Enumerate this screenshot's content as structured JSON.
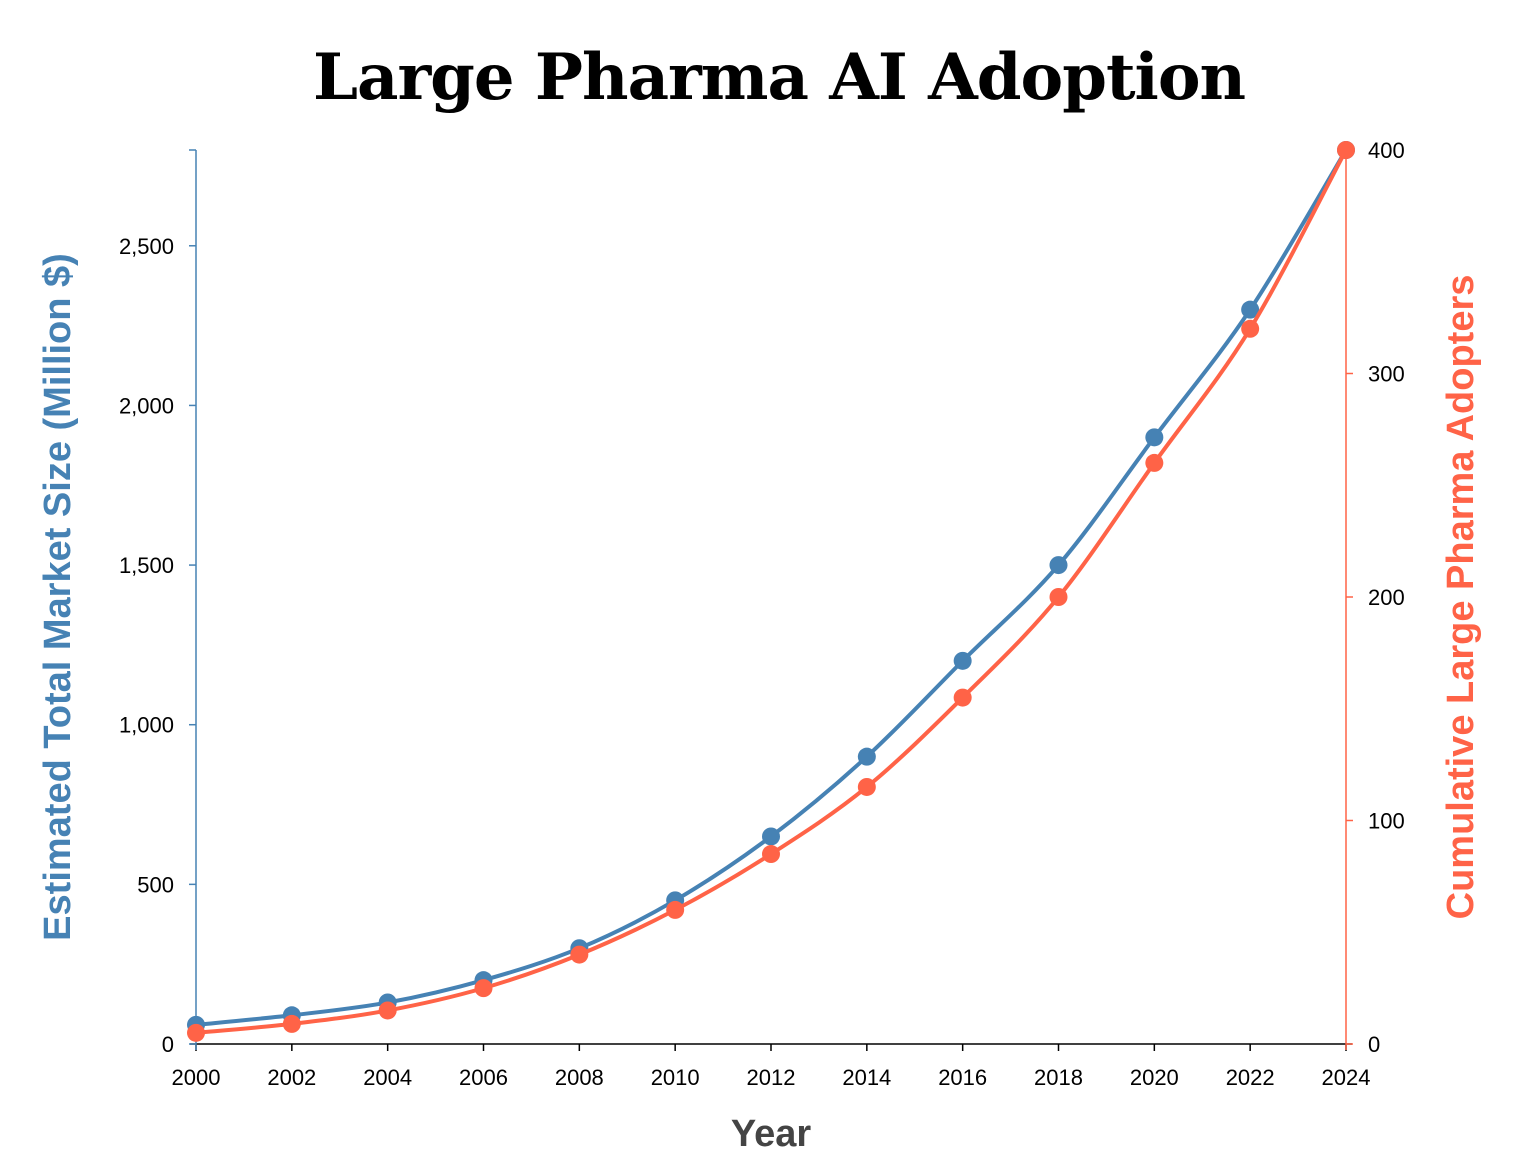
{
  "chart_data": {
    "type": "line",
    "title": "Large Pharma AI Adoption",
    "xlabel": "Year",
    "ylabel": "Estimated Total Market Size (Million $)",
    "y2label": "Cumulative Large Pharma Adopters",
    "x": [
      2000,
      2002,
      2004,
      2006,
      2008,
      2010,
      2012,
      2014,
      2016,
      2018,
      2020,
      2022,
      2024
    ],
    "xlim": [
      2000,
      2024
    ],
    "ylim": [
      0,
      2800
    ],
    "y2lim": [
      0,
      400
    ],
    "x_ticks": [
      "2000",
      "2002",
      "2004",
      "2006",
      "2008",
      "2010",
      "2012",
      "2014",
      "2016",
      "2018",
      "2020",
      "2022",
      "2024"
    ],
    "y_ticks": [
      {
        "value": 0,
        "label": "0"
      },
      {
        "value": 500,
        "label": "500"
      },
      {
        "value": 1000,
        "label": "1,000"
      },
      {
        "value": 1500,
        "label": "1,500"
      },
      {
        "value": 2000,
        "label": "2,000"
      },
      {
        "value": 2500,
        "label": "2,500"
      }
    ],
    "y2_ticks": [
      {
        "value": 0,
        "label": "0"
      },
      {
        "value": 100,
        "label": "100"
      },
      {
        "value": 200,
        "label": "200"
      },
      {
        "value": 300,
        "label": "300"
      },
      {
        "value": 400,
        "label": "400"
      }
    ],
    "grid": false,
    "series": [
      {
        "axis": "left",
        "color": "#4682b4",
        "values": [
          60,
          90,
          130,
          200,
          300,
          450,
          650,
          900,
          1200,
          1500,
          1900,
          2300,
          2800
        ]
      },
      {
        "axis": "right",
        "color": "#ff6347",
        "values": [
          5,
          9,
          15,
          25,
          40,
          60,
          85,
          115,
          155,
          200,
          260,
          320,
          400
        ]
      }
    ]
  }
}
